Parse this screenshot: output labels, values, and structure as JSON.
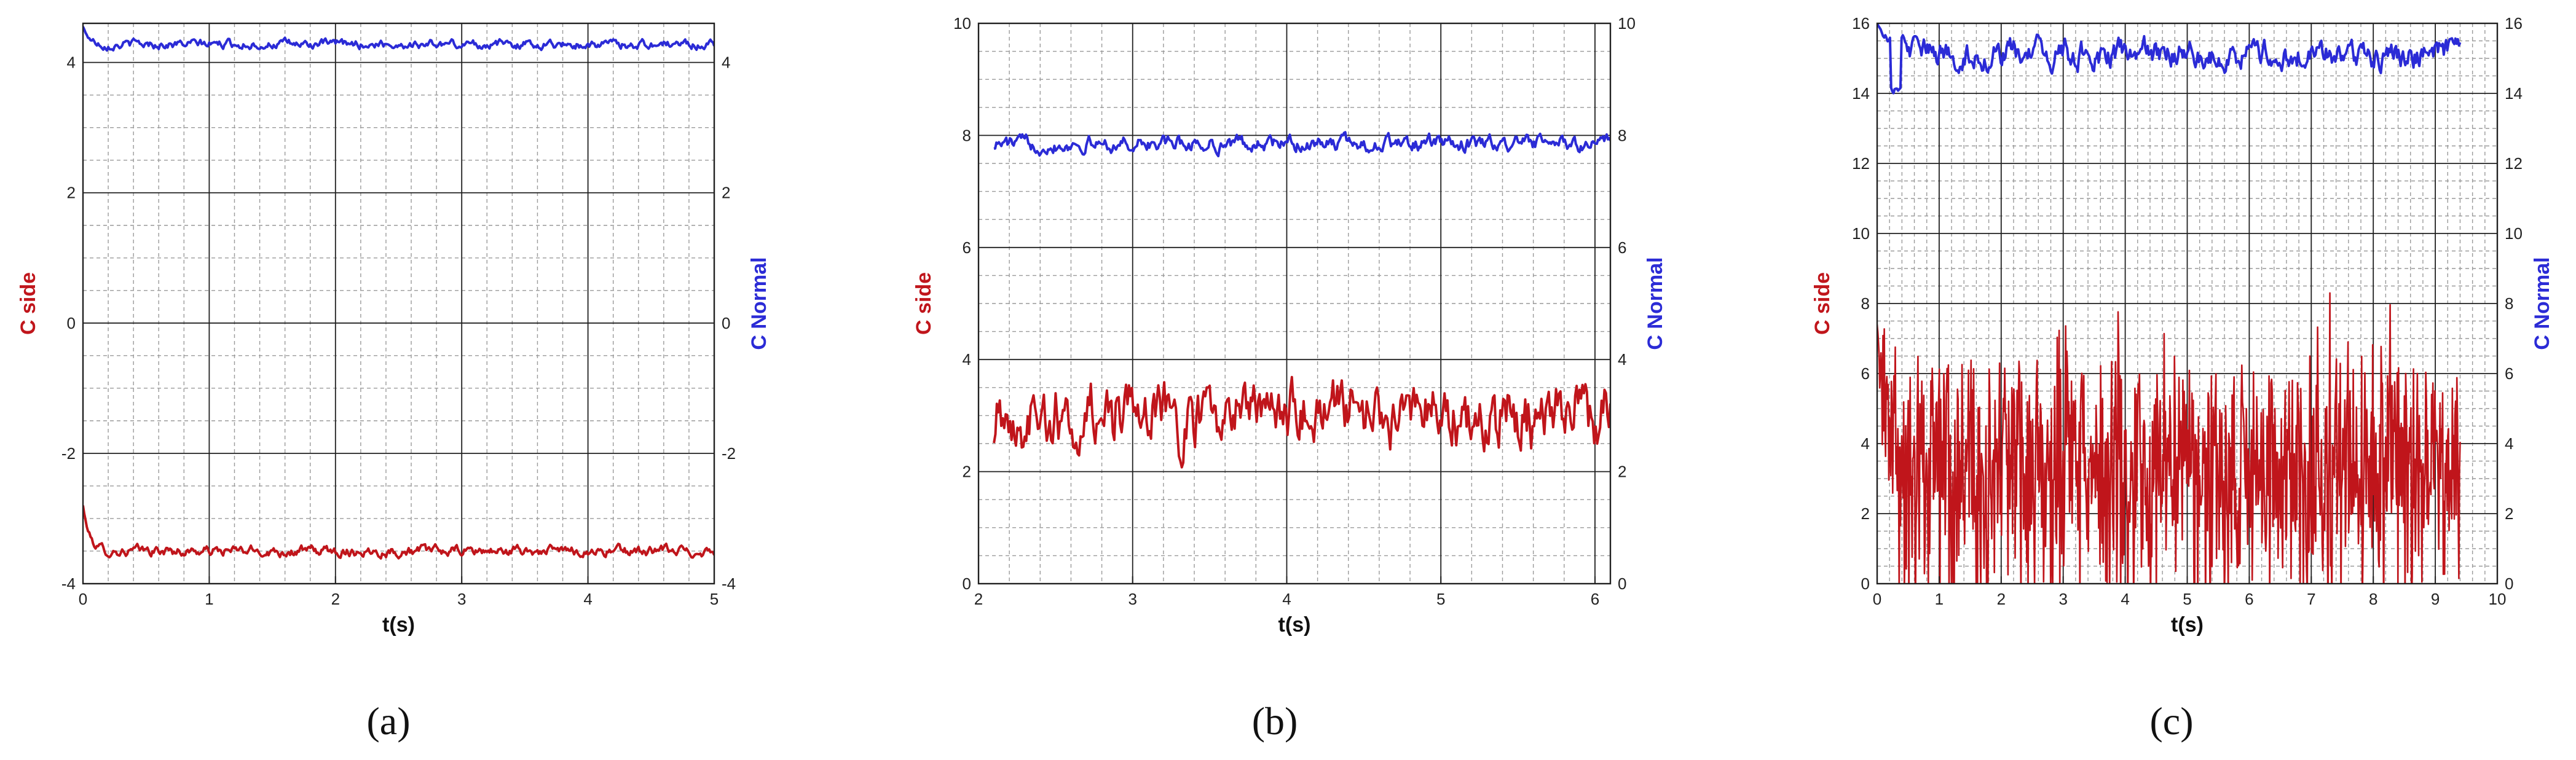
{
  "colors": {
    "c_side": "#c0151b",
    "c_normal": "#2b2bd6",
    "grid_major": "#202020",
    "grid_minor": "#9a9a9a",
    "frame": "#202020"
  },
  "chart_data": [
    {
      "type": "line",
      "panel_label": "(a)",
      "xlabel": "t(s)",
      "ylabel_left": "C side",
      "ylabel_right": "C Normal",
      "xlim": [
        0,
        5
      ],
      "ylim": [
        -4,
        4.6
      ],
      "xticks": [
        0,
        1,
        2,
        3,
        4,
        5
      ],
      "yticks": [
        -4,
        -2,
        0,
        2,
        4
      ],
      "grid": true,
      "series": [
        {
          "name": "C side",
          "axis": "left",
          "color": "#c0151b",
          "mean": -3.5,
          "amplitude": 0.07,
          "start_value": -2.8,
          "decay": 0.05,
          "x_start": 0,
          "x_end": 5,
          "noise": "smooth"
        },
        {
          "name": "C Normal",
          "axis": "right",
          "color": "#2b2bd6",
          "mean": 4.28,
          "amplitude": 0.06,
          "start_value": 4.55,
          "decay": 0.05,
          "x_start": 0,
          "x_end": 5,
          "noise": "smooth"
        }
      ]
    },
    {
      "type": "line",
      "panel_label": "(b)",
      "xlabel": "t(s)",
      "ylabel_left": "C side",
      "ylabel_right": "C Normal",
      "xlim": [
        2,
        6.1
      ],
      "ylim": [
        0,
        10
      ],
      "xticks": [
        2,
        3,
        4,
        5,
        6
      ],
      "yticks": [
        0,
        2,
        4,
        6,
        8,
        10
      ],
      "grid": true,
      "series": [
        {
          "name": "C side",
          "axis": "left",
          "color": "#c0151b",
          "mean": 3.0,
          "amplitude": 0.45,
          "start_value": 2.4,
          "decay": 0,
          "x_start": 2.1,
          "x_end": 6.1,
          "noise": "wavy"
        },
        {
          "name": "C Normal",
          "axis": "right",
          "color": "#2b2bd6",
          "mean": 7.85,
          "amplitude": 0.12,
          "start_value": 8.0,
          "decay": 0,
          "x_start": 2.1,
          "x_end": 6.1,
          "noise": "smooth"
        }
      ]
    },
    {
      "type": "line",
      "panel_label": "(c)",
      "xlabel": "t(s)",
      "ylabel_left": "C side",
      "ylabel_right": "C Normal",
      "xlim": [
        0,
        10
      ],
      "ylim": [
        0,
        16
      ],
      "xticks": [
        0,
        1,
        2,
        3,
        4,
        5,
        6,
        7,
        8,
        9,
        10
      ],
      "yticks": [
        0,
        2,
        4,
        6,
        8,
        10,
        12,
        14,
        16
      ],
      "grid": true,
      "series": [
        {
          "name": "C side",
          "axis": "left",
          "color": "#c0151b",
          "mean": 3.2,
          "amplitude": 1.5,
          "start_value": 7.4,
          "decay": 0.15,
          "x_start": 0,
          "x_end": 9.4,
          "noise": "spiky",
          "peak": {
            "x": 7.3,
            "y": 8.3
          }
        },
        {
          "name": "C Normal",
          "axis": "right",
          "color": "#2b2bd6",
          "mean": 15.1,
          "amplitude": 0.35,
          "start_value": 16.0,
          "decay": 0.3,
          "x_start": 0,
          "x_end": 9.4,
          "noise": "smooth",
          "dip": {
            "x": 0.3,
            "y": 14.1
          }
        }
      ]
    }
  ]
}
